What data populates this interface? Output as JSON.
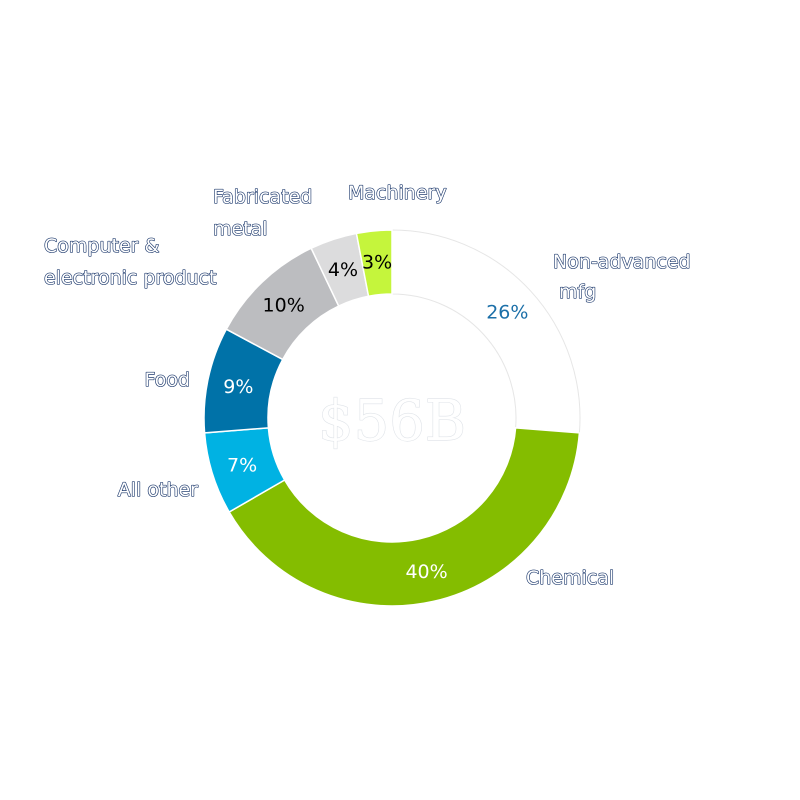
{
  "chart_data": {
    "type": "pie",
    "variant": "donut",
    "center_label": "$56B",
    "categories": [
      "Non-advanced mfg",
      "Chemical",
      "All other",
      "Food",
      "Computer & electronic product",
      "Fabricated metal",
      "Machinery"
    ],
    "values": [
      26,
      40,
      7,
      9,
      10,
      4,
      3
    ],
    "value_labels": [
      "26%",
      "40%",
      "7%",
      "9%",
      "10%",
      "4%",
      "3%"
    ],
    "colors": [
      "#ffffff",
      "#84bd00",
      "#00b2e3",
      "#0072a8",
      "#bcbdc0",
      "#dcdcdd",
      "#c5f53c"
    ],
    "value_label_colors": [
      "#1b6fa8",
      "#ffffff",
      "#ffffff",
      "#ffffff",
      "#000000",
      "#000000",
      "#000000"
    ],
    "category_label_lines": [
      [
        "Non-advanced",
        "mfg"
      ],
      [
        "Chemical"
      ],
      [
        "All other"
      ],
      [
        "Food"
      ],
      [
        "Computer &",
        "electronic product"
      ],
      [
        "Fabricated",
        "metal"
      ],
      [
        "Machinery"
      ]
    ],
    "legend": "none"
  }
}
